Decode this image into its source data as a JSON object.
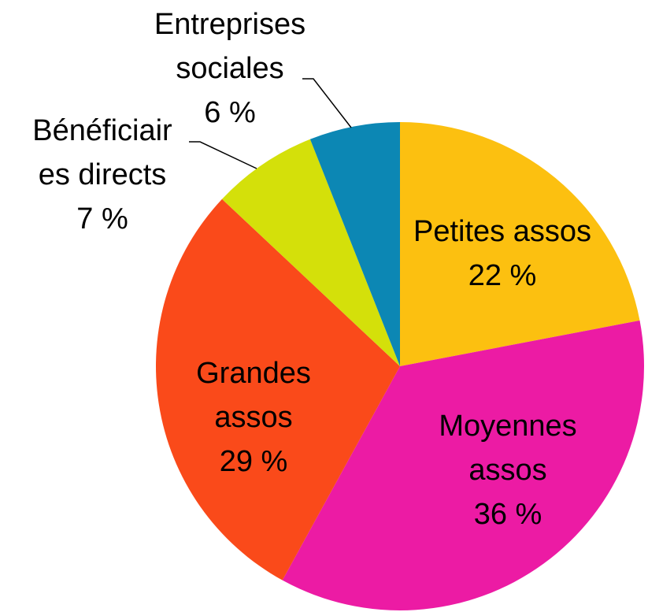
{
  "chart_data": {
    "type": "pie",
    "categories": [
      "Petites assos",
      "Moyennes assos",
      "Grandes assos",
      "Bénéficiaires directs",
      "Entreprises sociales"
    ],
    "values": [
      22,
      36,
      29,
      7,
      6
    ],
    "value_labels": [
      "22 %",
      "36 %",
      "29 %",
      "7 %",
      "6 %"
    ],
    "colors": [
      "#fcc010",
      "#ec1ba4",
      "#fa4a1a",
      "#d4e00a",
      "#0c87b4"
    ]
  }
}
